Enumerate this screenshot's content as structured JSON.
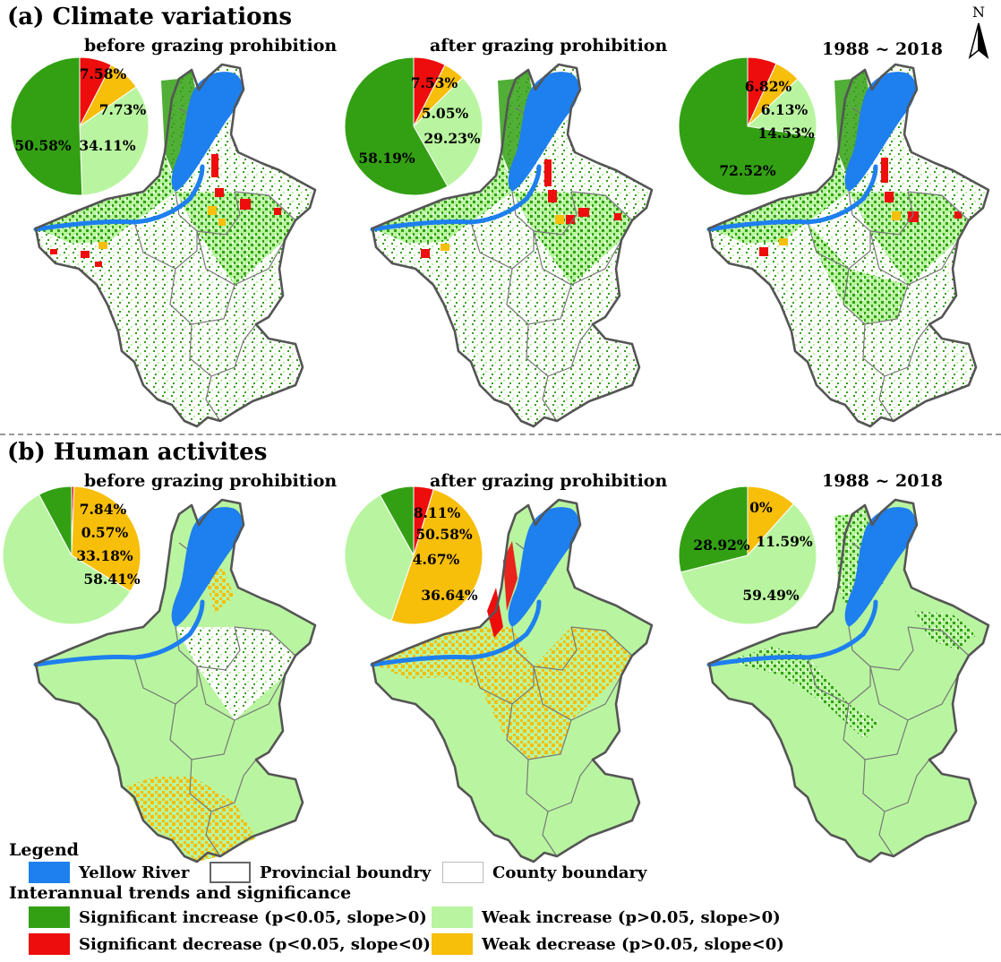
{
  "sections": {
    "a_title": "(a) Climate variations",
    "b_title": "(b) Human activites"
  },
  "panel_titles": {
    "before": "before grazing prohibition",
    "after": "after grazing prohibition",
    "full": "1988 ~ 2018"
  },
  "north_arrow": {
    "label": "N"
  },
  "colors": {
    "yellow_river": "#1e7fef",
    "significant_increase": "#33a014",
    "weak_increase": "#b9f5a0",
    "significant_decrease": "#ee0d0d",
    "weak_decrease": "#f7be0a",
    "boundary": "#555555"
  },
  "pies": [
    {
      "id": "a-before",
      "section": "a",
      "panel": "before",
      "slices": [
        {
          "cls": "sig-dec",
          "value": 7.58,
          "label": "7.58%"
        },
        {
          "cls": "weak-dec",
          "value": 7.73,
          "label": "7.73%"
        },
        {
          "cls": "weak-inc",
          "value": 34.11,
          "label": "34.11%"
        },
        {
          "cls": "sig-inc",
          "value": 50.58,
          "label": "50.58%"
        }
      ]
    },
    {
      "id": "a-after",
      "section": "a",
      "panel": "after",
      "slices": [
        {
          "cls": "sig-dec",
          "value": 7.53,
          "label": "7.53%"
        },
        {
          "cls": "weak-dec",
          "value": 5.05,
          "label": "5.05%"
        },
        {
          "cls": "weak-inc",
          "value": 29.23,
          "label": "29.23%"
        },
        {
          "cls": "sig-inc",
          "value": 58.19,
          "label": "58.19%"
        }
      ]
    },
    {
      "id": "a-full",
      "section": "a",
      "panel": "full",
      "slices": [
        {
          "cls": "sig-dec",
          "value": 6.82,
          "label": "6.82%"
        },
        {
          "cls": "weak-dec",
          "value": 6.13,
          "label": "6.13%"
        },
        {
          "cls": "weak-inc",
          "value": 14.53,
          "label": "14.53%"
        },
        {
          "cls": "sig-inc",
          "value": 72.52,
          "label": "72.52%"
        }
      ]
    },
    {
      "id": "b-before",
      "section": "b",
      "panel": "before",
      "slices": [
        {
          "cls": "sig-dec",
          "value": 0.57,
          "label": "0.57%"
        },
        {
          "cls": "weak-dec",
          "value": 33.18,
          "label": "33.18%"
        },
        {
          "cls": "weak-inc",
          "value": 58.41,
          "label": "58.41%"
        },
        {
          "cls": "sig-inc",
          "value": 7.84,
          "label": "7.84%"
        }
      ]
    },
    {
      "id": "b-after",
      "section": "b",
      "panel": "after",
      "slices": [
        {
          "cls": "sig-dec",
          "value": 4.67,
          "label": "4.67%"
        },
        {
          "cls": "weak-dec",
          "value": 50.58,
          "label": "50.58%"
        },
        {
          "cls": "weak-inc",
          "value": 36.64,
          "label": "36.64%"
        },
        {
          "cls": "sig-inc",
          "value": 8.11,
          "label": "8.11%"
        }
      ]
    },
    {
      "id": "b-full",
      "section": "b",
      "panel": "full",
      "slices": [
        {
          "cls": "sig-dec",
          "value": 0,
          "label": "0%"
        },
        {
          "cls": "weak-dec",
          "value": 11.59,
          "label": "11.59%"
        },
        {
          "cls": "weak-inc",
          "value": 59.49,
          "label": "59.49%"
        },
        {
          "cls": "sig-inc",
          "value": 28.92,
          "label": "28.92%"
        }
      ]
    }
  ],
  "legend": {
    "title": "Legend",
    "yellow_river": "Yellow River",
    "provincial_boundary": "Provincial boundry",
    "county_boundary": "County boundary",
    "trends_title": "Interannual trends and significance",
    "significant_increase": "Significant increase (p<0.05, slope>0)",
    "weak_increase": "Weak increase (p>0.05, slope>0)",
    "significant_decrease": "Significant decrease (p<0.05, slope<0)",
    "weak_decrease": "Weak decrease (p>0.05, slope<0)"
  }
}
